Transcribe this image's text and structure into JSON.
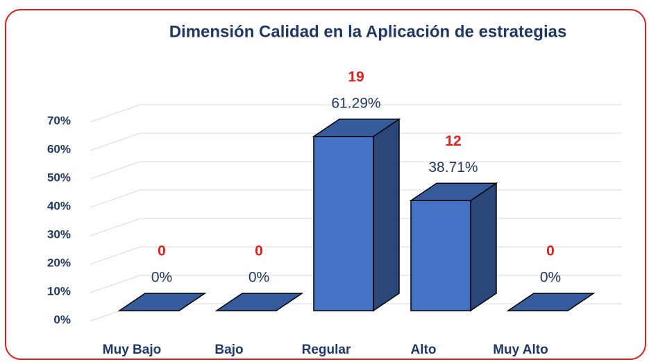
{
  "chart_data": {
    "type": "bar3d",
    "title": "Dimensión Calidad en la Aplicación de estrategias",
    "categories": [
      "Muy Bajo",
      "Bajo",
      "Regular",
      "Alto",
      "Muy Alto"
    ],
    "values": [
      0,
      0,
      61.29,
      38.71,
      0
    ],
    "value_labels": [
      "0%",
      "0%",
      "61.29%",
      "38.71%",
      "0%"
    ],
    "counts": [
      0,
      0,
      19,
      12,
      0
    ],
    "color": "#4472c4",
    "ylim": [
      0,
      80
    ],
    "yticks": [
      {
        "value": 0,
        "label": "0%"
      },
      {
        "value": 10,
        "label": "10%"
      },
      {
        "value": 20,
        "label": "20%"
      },
      {
        "value": 30,
        "label": "30%"
      },
      {
        "value": 40,
        "label": "40%"
      },
      {
        "value": 50,
        "label": "50%"
      },
      {
        "value": 60,
        "label": "60%"
      },
      {
        "value": 70,
        "label": "70%"
      }
    ],
    "grid": true
  }
}
